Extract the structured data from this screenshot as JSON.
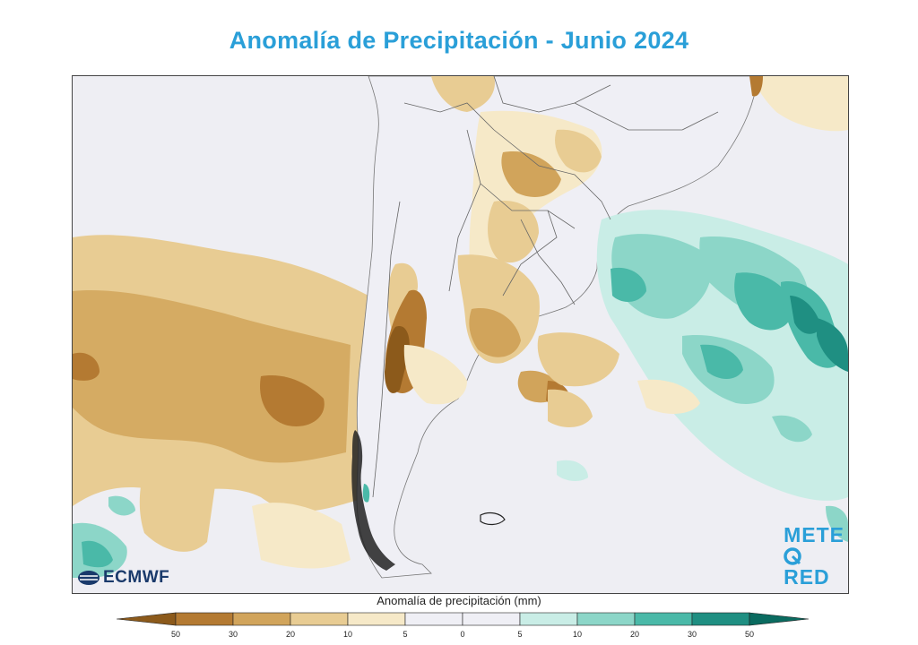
{
  "title": "Anomalía de Precipitación - Junio 2024",
  "title_color": "#2a9fd8",
  "logos": {
    "left": "ECMWF",
    "right_part1": "METE",
    "right_part2": "RED",
    "right_color": "#2a9fd8"
  },
  "legend": {
    "title": "Anomalía de precipitación (mm)",
    "tick_labels": [
      "50",
      "30",
      "20",
      "10",
      "5",
      "0",
      "5",
      "10",
      "20",
      "30",
      "50"
    ],
    "colors": [
      "#8c5a1b",
      "#b47a32",
      "#d1a45b",
      "#e8cc93",
      "#f6e9c8",
      "#efeff5",
      "#efeff5",
      "#c9ede6",
      "#8cd6c8",
      "#4ab9a8",
      "#1f8f82",
      "#0a6b60"
    ]
  },
  "map": {
    "region": "Sudamérica austral y Atlántico Sur",
    "legend_side_colors": {
      "dry": "#b47a32",
      "wet": "#4ab9a8"
    }
  }
}
